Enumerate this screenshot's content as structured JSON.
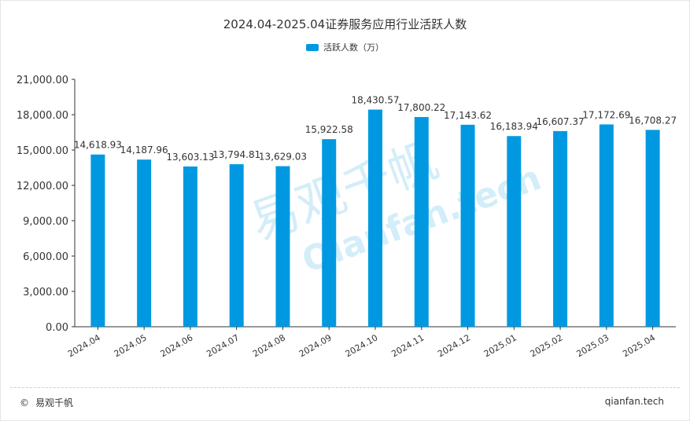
{
  "page": {
    "title": "2024.04-2025.04证券服务应用行业活跃人数",
    "footer": {
      "copyright_symbol": "©",
      "brand": "易观千帆",
      "site": "qianfan.tech"
    }
  },
  "watermark": {
    "text_cn": "易观千帆",
    "text_en": "Qianfan.tech"
  },
  "colors": {
    "bar": "#0099e1",
    "grid": "#dddddd",
    "axis": "#333333",
    "text": "#333333"
  },
  "chart_data": {
    "type": "bar",
    "title": "2024.04-2025.04证券服务应用行业活跃人数",
    "xlabel": "",
    "ylabel": "",
    "categories": [
      "2024.04",
      "2024.05",
      "2024.06",
      "2024.07",
      "2024.08",
      "2024.09",
      "2024.10",
      "2024.11",
      "2024.12",
      "2025.01",
      "2025.02",
      "2025.03",
      "2025.04"
    ],
    "series": [
      {
        "name": "活跃人数（万）",
        "values": [
          14618.93,
          14187.96,
          13603.13,
          13794.81,
          13629.03,
          15922.58,
          18430.57,
          17800.22,
          17143.62,
          16183.94,
          16607.37,
          17172.69,
          16708.27
        ]
      }
    ],
    "data_labels": [
      "14,618.93",
      "14,187.96",
      "13,603.13",
      "13,794.81",
      "13,629.03",
      "15,922.58",
      "18,430.57",
      "17,800.22",
      "17,143.62",
      "16,183.94",
      "16,607.37",
      "17,172.69",
      "16,708.27"
    ],
    "yticks": [
      0,
      3000,
      6000,
      9000,
      12000,
      15000,
      18000,
      21000
    ],
    "ytick_labels": [
      "0.00",
      "3,000.00",
      "6,000.00",
      "9,000.00",
      "12,000.00",
      "15,000.00",
      "18,000.00",
      "21,000.00"
    ],
    "ylim": [
      0,
      21000
    ],
    "grid": false,
    "legend_position": "top-center"
  }
}
